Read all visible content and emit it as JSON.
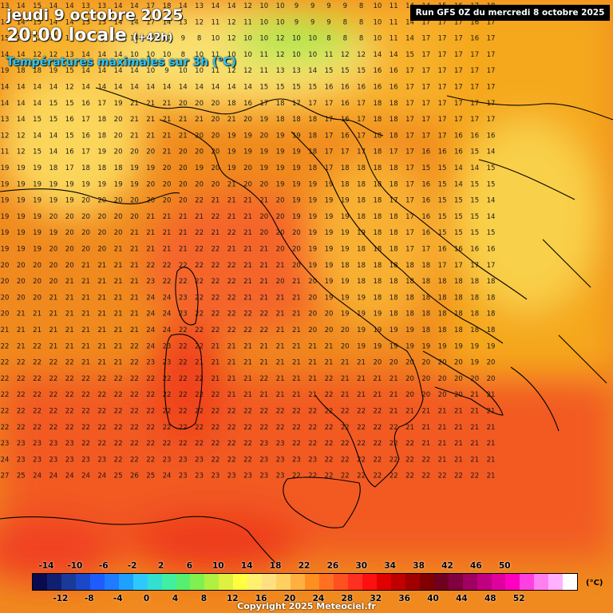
{
  "header": {
    "date": "jeudi 9 octobre 2025",
    "time": "20:00 locale",
    "lead": "(+42h)",
    "field": "Températures maximales sur 3h (°C)",
    "run": "Run GFS 0Z du mercredi 8 octobre 2025"
  },
  "legend": {
    "unit": "(°C)",
    "top_labels": [
      "-14",
      "-10",
      "-6",
      "-2",
      "2",
      "6",
      "10",
      "14",
      "18",
      "22",
      "26",
      "30",
      "34",
      "38",
      "42",
      "46",
      "50"
    ],
    "bottom_labels": [
      "-12",
      "-8",
      "-4",
      "0",
      "4",
      "8",
      "12",
      "16",
      "20",
      "24",
      "28",
      "32",
      "36",
      "40",
      "44",
      "48",
      "52"
    ],
    "colors": [
      "#0a0a50",
      "#102070",
      "#1a3a9a",
      "#1a48c8",
      "#1f5cff",
      "#1f7bff",
      "#1fa0ff",
      "#2ec8ff",
      "#33e0d0",
      "#40f0a0",
      "#55f070",
      "#80f050",
      "#b0f040",
      "#e0f040",
      "#ffff40",
      "#fff070",
      "#ffe080",
      "#ffd060",
      "#ffb040",
      "#ff9020",
      "#ff7020",
      "#ff5020",
      "#ff3020",
      "#ff1010",
      "#e00000",
      "#c00000",
      "#a00000",
      "#800000",
      "#700020",
      "#800040",
      "#a00060",
      "#c00080",
      "#e000a0",
      "#ff00c0",
      "#ff40e0",
      "#ff80f0",
      "#ffb0ff",
      "#ffffff"
    ]
  },
  "footer": {
    "copyright": "Copyright 2025 Meteociel.fr"
  },
  "map": {
    "grid_rows": [
      "13 14 15 14 14 13 13 14 14 17 18 14 13 14 14 12 10 10 9 9 9 9 8 10 11 14 14 15 16 17 18",
      "14 14 15 14 14 13 13 14 14 17 14 13 12 11 12 11 10 10 9 9 9 8 8 10 11 14 17 17 17 16 17",
      "15 15 12 14 15 13 14 14 14 10 10 9 8 10 12 10 10 12 10 10 8 8 8 10 11 14 17 17 17 16 17",
      "14 14 12 12 13 14 14 14 10 10 10 8 10 11 10 10 11 12 10 10 11 12 12 14 14 15 17 17 17 17 17",
      "19 18 18 19 15 14 14 14 14 10 9 10 10 11 12 12 11 13 13 14 15 15 15 16 16 17 17 17 17 17 17",
      "14 14 14 14 12 14 14 14 14 14 14 14 14 14 14 14 15 15 15 15 16 16 16 16 16 17 17 17 17 17 17",
      "14 14 14 15 15 16 17 19 21 21 21 20 20 20 18 16 17 18 17 17 17 16 17 18 18 17 17 17 17 17 17",
      "13 14 15 15 16 17 18 20 21 21 21 21 21 20 21 20 19 18 18 18 17 16 17 18 18 17 17 17 17 17 17",
      "12 12 14 14 15 16 18 20 21 21 21 21 20 20 19 19 20 19 19 18 17 16 17 18 18 17 17 17 16 16 16",
      "11 12 15 14 16 17 19 20 20 20 21 20 20 20 19 19 19 19 19 18 17 17 17 18 17 17 16 16 16 15 14",
      "19 19 19 18 17 18 18 18 19 19 20 20 19 20 19 20 19 19 19 18 17 18 18 18 18 17 15 15 14 14 15",
      "19 19 19 19 19 19 19 19 19 20 20 20 20 20 21 20 20 19 19 19 19 18 18 18 18 17 16 15 14 15 15",
      "19 19 19 19 19 20 20 20 20 20 20 20 22 21 21 21 21 20 19 19 19 19 18 18 17 17 16 15 15 15 14",
      "19 19 19 20 20 20 20 20 20 21 21 21 21 22 21 21 20 20 19 19 19 19 18 18 18 17 16 15 15 15 14",
      "19 19 19 19 20 20 20 20 21 21 21 21 22 21 22 21 20 20 20 19 19 19 19 18 18 17 16 15 15 15 15",
      "19 19 19 20 20 20 20 21 21 21 21 21 22 22 21 21 21 20 20 19 19 19 18 18 18 17 17 16 16 16 16",
      "20 20 20 20 20 21 21 21 21 22 22 22 22 22 22 21 21 21 20 19 19 18 18 18 18 18 18 17 17 17 17",
      "20 20 20 20 21 21 21 21 21 23 22 22 22 22 22 21 21 20 21 20 19 19 18 18 18 18 18 18 18 18 18",
      "20 20 20 21 21 21 21 21 21 24 24 23 22 22 22 21 21 21 21 20 19 19 19 18 18 18 18 18 18 18 18",
      "20 21 21 21 21 21 21 21 21 24 24 23 22 22 22 22 22 21 21 20 20 19 19 19 18 18 18 18 18 18 18",
      "21 21 21 21 21 21 21 21 21 24 24 22 22 22 22 22 22 21 21 20 20 20 19 19 19 19 18 18 18 18 18",
      "22 21 22 21 21 21 21 21 22 24 23 22 22 21 21 21 21 21 21 21 21 20 19 19 19 19 19 19 19 19 19",
      "22 22 22 22 22 21 21 21 22 23 23 22 21 21 21 21 21 21 21 21 21 21 21 20 20 20 20 20 20 19 20",
      "22 22 22 22 22 22 22 22 22 22 22 22 22 21 21 21 22 21 21 21 22 21 21 21 21 20 20 20 20 20 20",
      "22 22 22 22 22 22 22 22 22 22 22 22 22 22 21 21 21 21 21 21 22 21 21 21 21 20 20 20 20 21 21",
      "22 22 22 22 22 22 22 22 22 22 22 22 22 22 22 22 22 22 22 22 22 22 22 22 21 21 21 21 21 21 21",
      "22 22 22 22 22 22 22 22 22 22 22 22 22 22 22 22 22 22 22 22 22 22 22 22 22 21 21 21 21 21 21",
      "23 23 23 23 23 22 22 22 22 22 22 22 22 22 22 22 23 23 22 22 22 22 22 22 22 22 21 21 21 21 21",
      "24 23 23 23 23 23 23 22 22 22 23 23 23 22 22 22 23 23 23 23 22 22 22 22 22 22 22 21 21 21 21",
      "27 25 24 24 24 24 24 25 26 25 24 23 23 23 23 23 23 23 22 22 22 22 22 22 22 22 22 22 22 22 21"
    ]
  }
}
